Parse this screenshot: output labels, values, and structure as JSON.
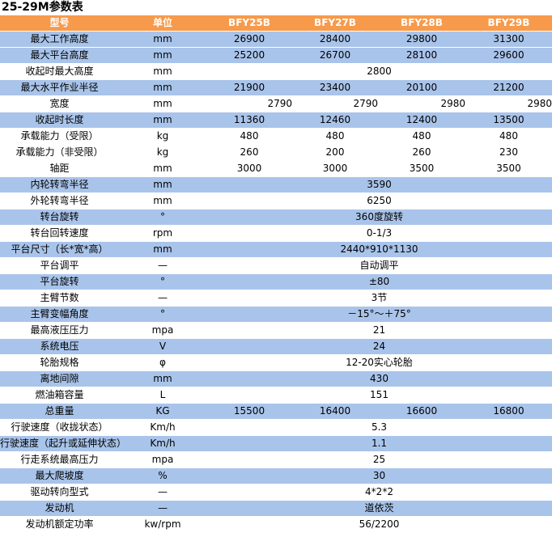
{
  "title": "25-29M参数表",
  "header": [
    "型号",
    "单位",
    "BFY25B",
    "BFY27B",
    "BFY28B",
    "BFY29B"
  ],
  "rows": [
    {
      "name": "最大工作高度",
      "unit": "mm",
      "values": [
        "26900",
        "28400",
        "29800",
        "31300"
      ],
      "style": "blue"
    },
    {
      "name": "最大平台高度",
      "unit": "mm",
      "values": [
        "25200",
        "26700",
        "28100",
        "29600"
      ],
      "style": "blue"
    },
    {
      "name": "收起时最大高度",
      "unit": "mm",
      "span": "2800",
      "style": "white"
    },
    {
      "name": "最大水平作业半径",
      "unit": "mm",
      "values": [
        "21900",
        "23400",
        "20100",
        "21200"
      ],
      "style": "blue"
    },
    {
      "name": "宽度",
      "unit": "mm",
      "values": [
        "2790",
        "2790",
        "2980",
        "2980"
      ],
      "style": "white",
      "shifted": true
    },
    {
      "name": "收起时长度",
      "unit": "mm",
      "values": [
        "11360",
        "12460",
        "12400",
        "13500"
      ],
      "style": "blue"
    },
    {
      "name": "承载能力（受限）",
      "unit": "kg",
      "values": [
        "480",
        "480",
        "480",
        "480"
      ],
      "style": "white"
    },
    {
      "name": "承载能力（非受限）",
      "unit": "kg",
      "values": [
        "260",
        "200",
        "260",
        "230"
      ],
      "style": "white"
    },
    {
      "name": "轴距",
      "unit": "mm",
      "values": [
        "3000",
        "3000",
        "3500",
        "3500"
      ],
      "style": "white"
    },
    {
      "name": "内轮转弯半径",
      "unit": "mm",
      "span": "3590",
      "style": "blue"
    },
    {
      "name": "外轮转弯半径",
      "unit": "mm",
      "span": "6250",
      "style": "white"
    },
    {
      "name": "转台旋转",
      "unit": "°",
      "span": "360度旋转",
      "style": "blue"
    },
    {
      "name": "转台回转速度",
      "unit": "rpm",
      "span": "0-1/3",
      "style": "white"
    },
    {
      "name": "平台尺寸（长*宽*高）",
      "unit": "mm",
      "span": "2440*910*1130",
      "style": "blue"
    },
    {
      "name": "平台调平",
      "unit": "—",
      "span": "自动调平",
      "style": "white"
    },
    {
      "name": "平台旋转",
      "unit": "°",
      "span": "±80",
      "style": "blue"
    },
    {
      "name": "主臂节数",
      "unit": "—",
      "span": "3节",
      "style": "white"
    },
    {
      "name": "主臂变幅角度",
      "unit": "°",
      "span": "－15°～＋75°",
      "style": "blue"
    },
    {
      "name": "最高液压压力",
      "unit": "mpa",
      "span": "21",
      "style": "white"
    },
    {
      "name": "系统电压",
      "unit": "V",
      "span": "24",
      "style": "blue"
    },
    {
      "name": "轮胎规格",
      "unit": "φ",
      "span": "12-20实心轮胎",
      "style": "white"
    },
    {
      "name": "离地间隙",
      "unit": "mm",
      "span": "430",
      "style": "blue"
    },
    {
      "name": "燃油箱容量",
      "unit": "L",
      "span": "151",
      "style": "white"
    },
    {
      "name": "总重量",
      "unit": "KG",
      "values": [
        "15500",
        "16400",
        "16600",
        "16800"
      ],
      "style": "blue"
    },
    {
      "name": "行驶速度（收拢状态）",
      "unit": "Km/h",
      "span": "5.3",
      "style": "white"
    },
    {
      "name": "行驶速度（起升或延伸状态）",
      "unit": "Km/h",
      "span": "1.1",
      "style": "blue"
    },
    {
      "name": "行走系统最高压力",
      "unit": "mpa",
      "span": "25",
      "style": "white"
    },
    {
      "name": "最大爬坡度",
      "unit": "%",
      "span": "30",
      "style": "blue"
    },
    {
      "name": "驱动转向型式",
      "unit": "—",
      "span": "4*2*2",
      "style": "white"
    },
    {
      "name": "发动机",
      "unit": "—",
      "span": "道依茨",
      "style": "blue"
    },
    {
      "name": "发动机额定功率",
      "unit": "kw/rpm",
      "span": "56/2200",
      "style": "white"
    }
  ]
}
